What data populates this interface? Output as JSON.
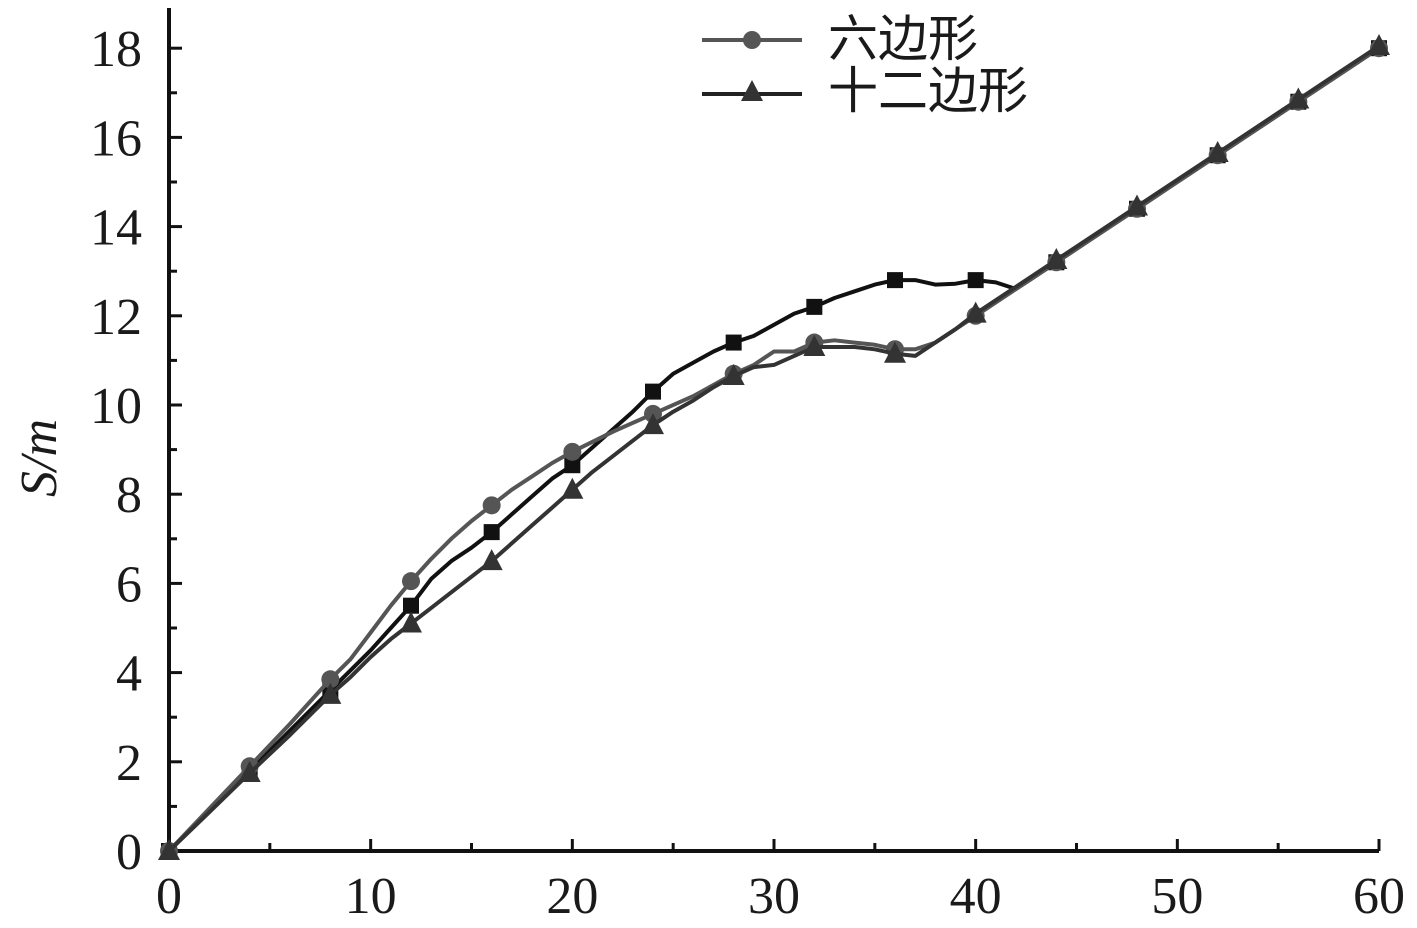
{
  "chart_data": {
    "type": "line",
    "title": "",
    "xlabel": "",
    "ylabel": "S/m",
    "xlim": [
      0,
      60
    ],
    "ylim": [
      0,
      18.9
    ],
    "x_ticks": [
      0,
      10,
      20,
      30,
      40,
      50,
      60
    ],
    "y_ticks": [
      0,
      2,
      4,
      6,
      8,
      10,
      12,
      14,
      16,
      18
    ],
    "grid": false,
    "legend_position": "top-center",
    "series": [
      {
        "name": "",
        "color": "#111111",
        "marker": "square",
        "x": [
          0,
          4,
          8,
          12,
          16,
          20,
          24,
          28,
          32,
          36,
          40,
          44,
          48,
          52,
          56,
          60
        ],
        "y": [
          0,
          1.8,
          3.6,
          5.5,
          7.15,
          8.65,
          10.3,
          11.4,
          12.2,
          12.8,
          12.8,
          13.2,
          14.4,
          15.6,
          16.8,
          18.0
        ],
        "line_x": [
          0,
          2,
          4,
          6,
          8,
          10,
          11,
          12,
          13,
          14,
          15,
          16,
          17,
          18,
          19,
          20,
          21,
          22,
          23,
          24,
          25,
          26,
          27,
          28,
          29,
          30,
          31,
          32,
          33,
          34,
          35,
          36,
          37,
          38,
          39,
          40,
          41,
          42,
          43,
          44,
          46,
          48,
          50,
          52,
          54,
          56,
          58,
          60
        ],
        "line_y": [
          0,
          0.9,
          1.8,
          2.7,
          3.6,
          4.5,
          5.0,
          5.5,
          6.1,
          6.5,
          6.8,
          7.15,
          7.55,
          7.95,
          8.35,
          8.65,
          9.05,
          9.45,
          9.85,
          10.3,
          10.7,
          10.95,
          11.2,
          11.4,
          11.55,
          11.8,
          12.05,
          12.2,
          12.4,
          12.55,
          12.7,
          12.8,
          12.8,
          12.7,
          12.72,
          12.8,
          12.75,
          12.6,
          12.9,
          13.2,
          13.8,
          14.4,
          15.0,
          15.6,
          16.2,
          16.8,
          17.4,
          18.0
        ]
      },
      {
        "name": "六边形",
        "color": "#555555",
        "marker": "circle",
        "x": [
          0,
          4,
          8,
          12,
          16,
          20,
          24,
          28,
          32,
          36,
          40,
          44,
          48,
          52,
          56,
          60
        ],
        "y": [
          0,
          1.9,
          3.85,
          6.05,
          7.75,
          8.95,
          9.8,
          10.7,
          11.4,
          11.25,
          12.0,
          13.2,
          14.4,
          15.6,
          16.8,
          18.0
        ],
        "line_x": [
          0,
          2,
          4,
          6,
          8,
          9,
          10,
          11,
          12,
          13,
          14,
          15,
          16,
          17,
          18,
          19,
          20,
          22,
          24,
          26,
          28,
          29,
          30,
          31,
          32,
          33,
          34,
          35,
          36,
          37,
          38,
          39,
          40,
          42,
          44,
          46,
          48,
          50,
          52,
          54,
          56,
          58,
          60
        ],
        "line_y": [
          0,
          0.95,
          1.9,
          2.85,
          3.85,
          4.3,
          4.9,
          5.5,
          6.05,
          6.55,
          7.0,
          7.4,
          7.75,
          8.1,
          8.4,
          8.7,
          8.95,
          9.4,
          9.8,
          10.2,
          10.7,
          10.9,
          11.2,
          11.2,
          11.4,
          11.45,
          11.4,
          11.35,
          11.25,
          11.25,
          11.4,
          11.7,
          12.0,
          12.6,
          13.2,
          13.8,
          14.4,
          15.0,
          15.6,
          16.2,
          16.8,
          17.4,
          18.0
        ]
      },
      {
        "name": "十二边形",
        "color": "#333333",
        "marker": "triangle",
        "x": [
          0,
          4,
          8,
          12,
          16,
          20,
          24,
          28,
          32,
          36,
          40,
          44,
          48,
          52,
          56,
          60
        ],
        "y": [
          0,
          1.75,
          3.5,
          5.1,
          6.5,
          8.1,
          9.55,
          10.65,
          11.3,
          11.15,
          12.05,
          13.25,
          14.45,
          15.65,
          16.85,
          18.05
        ],
        "line_x": [
          0,
          2,
          4,
          6,
          8,
          9,
          10,
          11,
          12,
          13,
          14,
          15,
          16,
          17,
          18,
          19,
          20,
          21,
          22,
          23,
          24,
          25,
          26,
          27,
          28,
          29,
          30,
          31,
          32,
          33,
          34,
          35,
          36,
          37,
          38,
          39,
          40,
          42,
          44,
          46,
          48,
          50,
          52,
          54,
          56,
          58,
          60
        ],
        "line_y": [
          0,
          0.87,
          1.75,
          2.6,
          3.5,
          3.9,
          4.35,
          4.75,
          5.1,
          5.45,
          5.8,
          6.15,
          6.5,
          6.9,
          7.3,
          7.7,
          8.1,
          8.5,
          8.85,
          9.2,
          9.55,
          9.85,
          10.1,
          10.4,
          10.65,
          10.85,
          10.9,
          11.1,
          11.3,
          11.3,
          11.3,
          11.25,
          11.15,
          11.1,
          11.4,
          11.7,
          12.05,
          12.65,
          13.25,
          13.85,
          14.45,
          15.05,
          15.65,
          16.25,
          16.85,
          17.45,
          18.05
        ]
      }
    ]
  }
}
